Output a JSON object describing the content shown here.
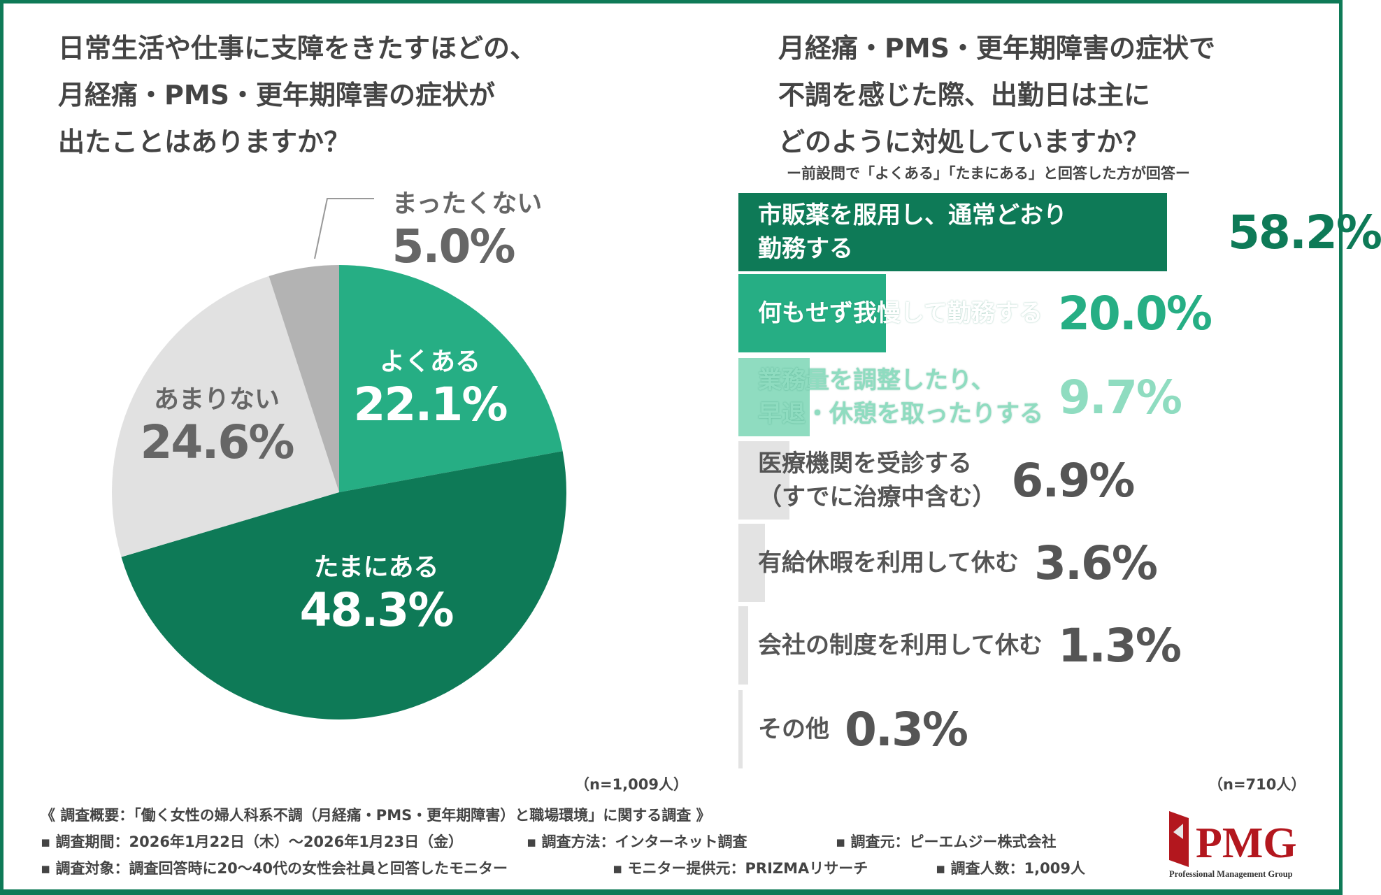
{
  "left_title": [
    "日常生活や仕事に支障をきたすほどの、",
    "月経痛・PMS・更年期障害の症状が",
    "出たことはありますか？"
  ],
  "right_title": [
    "月経痛・PMS・更年期障害の症状で",
    "不調を感じた際、出勤日は主に",
    "どのように対処していますか？"
  ],
  "right_subtitle": "ー前設問で「よくある」「たまにある」と回答した方が回答ー",
  "chart_data": [
    {
      "type": "pie",
      "title": "日常生活や仕事に支障をきたすほどの、月経痛・PMS・更年期障害の症状が出たことはありますか？",
      "start": "top",
      "direction": "clockwise",
      "slices": [
        {
          "label": "よくある",
          "value": 22.1,
          "display": "22.1%",
          "color": "#26ae84"
        },
        {
          "label": "たまにある",
          "value": 48.3,
          "display": "48.3%",
          "color": "#0e7a57"
        },
        {
          "label": "あまりない",
          "value": 24.6,
          "display": "24.6%",
          "color": "#e1e1e1"
        },
        {
          "label": "まったくない",
          "value": 5.0,
          "display": "5.0%",
          "color": "#b3b3b3"
        }
      ],
      "n": "（n=1,009人）"
    },
    {
      "type": "bar",
      "orientation": "horizontal",
      "title": "月経痛・PMS・更年期障害の症状で不調を感じた際、出勤日は主にどのように対処していますか？",
      "xlim": [
        0,
        58.2
      ],
      "bars": [
        {
          "label": [
            "市販薬を服用し、通常どおり",
            "勤務する"
          ],
          "value": 58.2,
          "display": "58.2%",
          "color": "#0e7a57",
          "text_color": "#ffffff",
          "value_color": "#0e7a57"
        },
        {
          "label": [
            "何もせず我慢して勤務する"
          ],
          "value": 20.0,
          "display": "20.0%",
          "color": "#26ae84",
          "text_color": "#ffffff",
          "value_color": "#26ae84"
        },
        {
          "label": [
            "業務量を調整したり、",
            "早退・休憩を取ったりする"
          ],
          "value": 9.7,
          "display": "9.7%",
          "color": "#8fdcc0",
          "text_color": "#8fdcc0",
          "value_color": "#8fdcc0"
        },
        {
          "label": [
            "医療機関を受診する",
            "（すでに治療中含む）"
          ],
          "value": 6.9,
          "display": "6.9%",
          "color": "#e3e3e3",
          "text_color": "#555555",
          "value_color": "#555555"
        },
        {
          "label": [
            "有給休暇を利用して休む"
          ],
          "value": 3.6,
          "display": "3.6%",
          "color": "#e3e3e3",
          "text_color": "#555555",
          "value_color": "#555555"
        },
        {
          "label": [
            "会社の制度を利用して休む"
          ],
          "value": 1.3,
          "display": "1.3%",
          "color": "#e3e3e3",
          "text_color": "#555555",
          "value_color": "#555555"
        },
        {
          "label": [
            "その他"
          ],
          "value": 0.3,
          "display": "0.3%",
          "color": "#e3e3e3",
          "text_color": "#555555",
          "value_color": "#555555"
        }
      ],
      "n": "（n=710人）"
    }
  ],
  "footer": {
    "overview": "《 調査概要：「働く女性の婦人科系不調（月経痛・PMS・更年期障害）と職場環境」に関する調査 》",
    "period": "▪ 調査期間：2026年1月22日（木）〜2026年1月23日（金）",
    "method": "▪ 調査方法：インターネット調査",
    "source": "▪ 調査元：ピーエムジー株式会社",
    "target": "▪ 調査対象：調査回答時に20〜40代の女性会社員と回答したモニター",
    "provider": "▪ モニター提供元：PRIZMAリサーチ",
    "count": "▪ 調査人数：1,009人"
  },
  "logo": {
    "text": "PMG",
    "tagline": "Professional Management Group",
    "color": "#b3171e"
  }
}
